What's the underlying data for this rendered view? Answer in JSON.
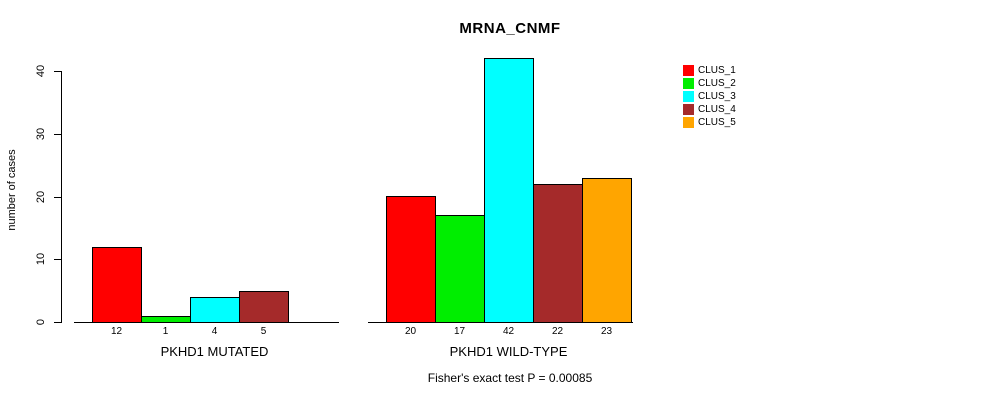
{
  "chart_data": {
    "type": "bar",
    "title": "MRNA_CNMF",
    "ylabel": "number of cases",
    "xlabel": "",
    "ylim": [
      0,
      40
    ],
    "yticks": [
      0,
      10,
      20,
      30,
      40
    ],
    "grid": false,
    "legend_position": "right",
    "background": "#FFFFFF",
    "axis_color": "#000000",
    "series": [
      {
        "name": "CLUS_1",
        "color": "#FF0000"
      },
      {
        "name": "CLUS_2",
        "color": "#00EE00"
      },
      {
        "name": "CLUS_3",
        "color": "#00FFFF"
      },
      {
        "name": "CLUS_4",
        "color": "#A52A2A"
      },
      {
        "name": "CLUS_5",
        "color": "#FFA500"
      }
    ],
    "groups": [
      {
        "label": "PKHD1 MUTATED",
        "values": [
          12,
          1,
          4,
          5,
          0
        ],
        "bar_labels": [
          "12",
          "1",
          "4",
          "5",
          ""
        ]
      },
      {
        "label": "PKHD1 WILD-TYPE",
        "values": [
          20,
          17,
          42,
          22,
          23
        ],
        "bar_labels": [
          "20",
          "17",
          "42",
          "22",
          "23"
        ]
      }
    ],
    "annotation": "Fisher's exact test P = 0.00085"
  }
}
